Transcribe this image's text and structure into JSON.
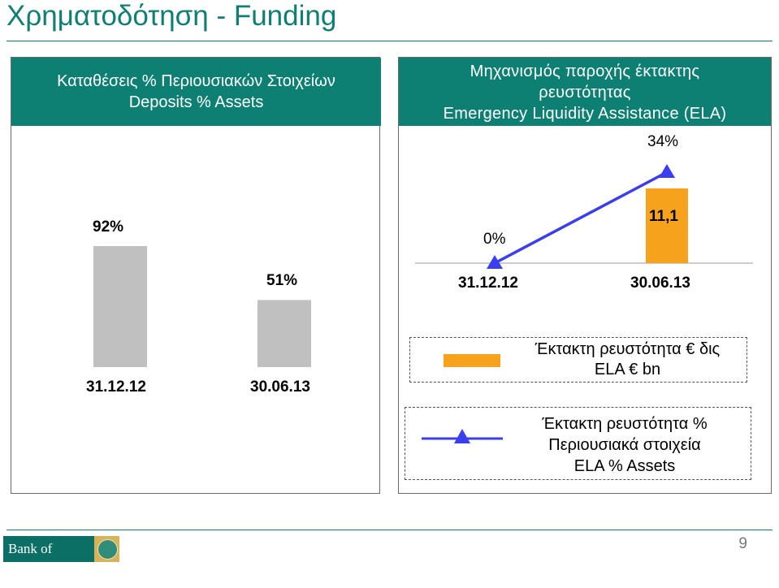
{
  "title": "Χρηματοδότηση  - Funding",
  "left_panel": {
    "header_lines": [
      "Καταθέσεις % Περιουσιακών Στοιχείων",
      "Deposits % Assets"
    ]
  },
  "right_panel": {
    "header_lines": [
      "Μηχανισμός παροχής έκτακτης",
      "ρευστότητας",
      "Emergency Liquidity Assistance (ELA)"
    ],
    "legend": {
      "bar_entry_lines": [
        "Έκτακτη ρευστότητα € δις",
        "ELA € bn"
      ],
      "line_entry_lines": [
        "Έκτακτη ρευστότητα %",
        "Περιουσιακά στοιχεία",
        "ELA % Assets"
      ]
    }
  },
  "colors": {
    "accent": "#0e8073",
    "bar_gray": "#c0c0c0",
    "bar_orange": "#f7a21c",
    "line_blue": "#3a3df0"
  },
  "chart_data": [
    {
      "type": "bar",
      "title": "Καταθέσεις % Περιουσιακών Στοιχείων / Deposits % Assets",
      "categories": [
        "31.12.12",
        "30.06.13"
      ],
      "values": [
        92,
        51
      ],
      "value_labels": [
        "92%",
        "51%"
      ],
      "ylim": [
        0,
        100
      ],
      "grid": false,
      "legend": "none"
    },
    {
      "type": "bar",
      "title": "Μηχανισμός παροχής έκτακτης ρευστότητας / Emergency Liquidity Assistance (ELA)",
      "categories": [
        "31.12.12",
        "30.06.13"
      ],
      "series": [
        {
          "name": "Έκτακτη ρευστότητα € δις / ELA € bn",
          "type": "bar",
          "values": [
            0,
            11.1
          ],
          "value_labels": [
            "",
            "11,1"
          ]
        },
        {
          "name": "Έκτακτη ρευστότητα % Περιουσιακά στοιχεία / ELA % Assets",
          "type": "line",
          "values": [
            0,
            34
          ],
          "value_labels": [
            "0%",
            "34%"
          ]
        }
      ],
      "grid": false,
      "legend": "bottom"
    }
  ],
  "page_number": "9",
  "logo": {
    "text": "Bank of Cyprus"
  }
}
